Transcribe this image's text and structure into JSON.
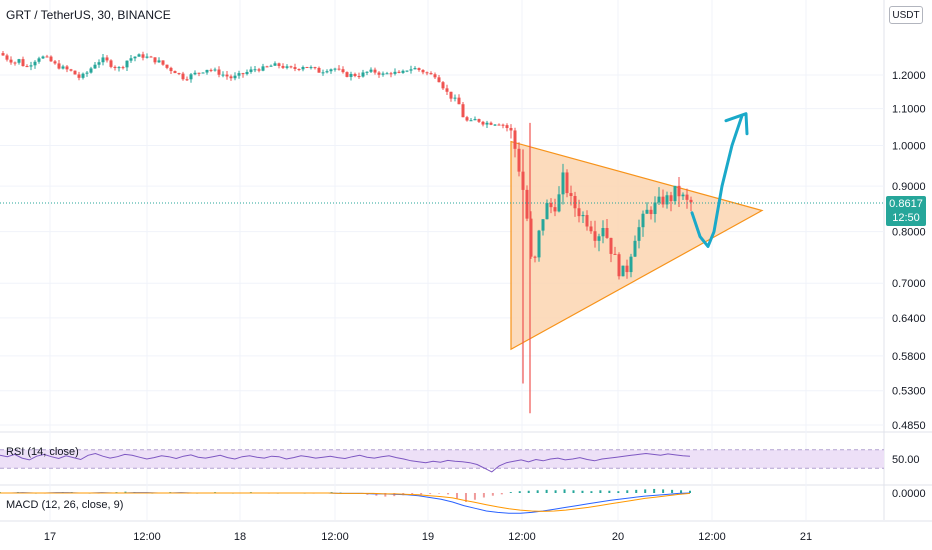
{
  "header": {
    "symbol_title": "GRT / TetherUS, 30, BINANCE",
    "currency_badge": "USDT"
  },
  "last_price": {
    "value": "0.8617",
    "countdown": "12:50"
  },
  "indicators": {
    "rsi_label": "RSI (14, close)",
    "rsi_level_label": "50.00",
    "macd_label": "MACD (12, 26, close, 9)",
    "macd_level_label": "0.0000"
  },
  "colors": {
    "up": "#26a69a",
    "down": "#ef5350",
    "triangle_stroke": "#f7931a",
    "triangle_fill": "#fbd5b0",
    "arrow": "#1aa9c9",
    "rsi_line": "#7e57c2",
    "rsi_band": "#ede0f7",
    "macd_line": "#2962ff",
    "signal_line": "#ff9800",
    "last_price_line": "#26a69a"
  },
  "chart_data": {
    "type": "candlestick",
    "title": "GRT / TetherUS, 30, BINANCE",
    "y_scale": "log",
    "ylim": [
      0.485,
      1.32
    ],
    "y_ticks": [
      1.2,
      1.1,
      1.0,
      0.9,
      0.8,
      0.7,
      0.64,
      0.58,
      0.53,
      0.485
    ],
    "y_tick_labels": [
      "1.2000",
      "1.1000",
      "1.0000",
      "0.9000",
      "0.8000",
      "0.7000",
      "0.6400",
      "0.5800",
      "0.5300",
      "0.4850"
    ],
    "x_tick_labels": [
      "17",
      "12:00",
      "18",
      "12:00",
      "19",
      "12:00",
      "20",
      "12:00",
      "21"
    ],
    "last_price": 0.8617,
    "close_path": [
      [
        0,
        1.27
      ],
      [
        8,
        1.25
      ],
      [
        15,
        1.24
      ],
      [
        20,
        1.25
      ],
      [
        25,
        1.22
      ],
      [
        32,
        1.24
      ],
      [
        40,
        1.26
      ],
      [
        48,
        1.25
      ],
      [
        56,
        1.23
      ],
      [
        64,
        1.22
      ],
      [
        72,
        1.21
      ],
      [
        80,
        1.19
      ],
      [
        88,
        1.21
      ],
      [
        96,
        1.24
      ],
      [
        104,
        1.25
      ],
      [
        112,
        1.23
      ],
      [
        120,
        1.22
      ],
      [
        128,
        1.25
      ],
      [
        136,
        1.26
      ],
      [
        144,
        1.26
      ],
      [
        152,
        1.25
      ],
      [
        160,
        1.24
      ],
      [
        168,
        1.22
      ],
      [
        176,
        1.21
      ],
      [
        184,
        1.19
      ],
      [
        192,
        1.2
      ],
      [
        200,
        1.21
      ],
      [
        208,
        1.22
      ],
      [
        216,
        1.21
      ],
      [
        224,
        1.2
      ],
      [
        232,
        1.19
      ],
      [
        240,
        1.2
      ],
      [
        248,
        1.21
      ],
      [
        256,
        1.22
      ],
      [
        264,
        1.22
      ],
      [
        272,
        1.23
      ],
      [
        280,
        1.23
      ],
      [
        288,
        1.22
      ],
      [
        296,
        1.22
      ],
      [
        304,
        1.23
      ],
      [
        312,
        1.22
      ],
      [
        320,
        1.21
      ],
      [
        328,
        1.22
      ],
      [
        336,
        1.22
      ],
      [
        344,
        1.2
      ],
      [
        352,
        1.2
      ],
      [
        360,
        1.2
      ],
      [
        368,
        1.21
      ],
      [
        376,
        1.21
      ],
      [
        384,
        1.2
      ],
      [
        392,
        1.21
      ],
      [
        400,
        1.2
      ],
      [
        408,
        1.22
      ],
      [
        416,
        1.22
      ],
      [
        424,
        1.21
      ],
      [
        430,
        1.2
      ],
      [
        436,
        1.2
      ],
      [
        440,
        1.18
      ],
      [
        446,
        1.15
      ],
      [
        452,
        1.13
      ],
      [
        458,
        1.12
      ],
      [
        464,
        1.07
      ],
      [
        470,
        1.06
      ],
      [
        476,
        1.07
      ],
      [
        484,
        1.06
      ],
      [
        492,
        1.06
      ],
      [
        500,
        1.06
      ],
      [
        506,
        1.05
      ],
      [
        512,
        1.03
      ],
      [
        516,
        0.98
      ],
      [
        520,
        0.93
      ],
      [
        524,
        0.88
      ],
      [
        528,
        0.81
      ],
      [
        532,
        0.72
      ],
      [
        536,
        0.75
      ],
      [
        540,
        0.81
      ],
      [
        544,
        0.84
      ],
      [
        548,
        0.86
      ],
      [
        552,
        0.85
      ],
      [
        556,
        0.86
      ],
      [
        560,
        0.88
      ],
      [
        564,
        0.93
      ],
      [
        568,
        0.88
      ],
      [
        572,
        0.86
      ],
      [
        576,
        0.85
      ],
      [
        580,
        0.84
      ],
      [
        584,
        0.83
      ],
      [
        588,
        0.82
      ],
      [
        592,
        0.81
      ],
      [
        596,
        0.79
      ],
      [
        600,
        0.8
      ],
      [
        604,
        0.82
      ],
      [
        608,
        0.78
      ],
      [
        612,
        0.76
      ],
      [
        616,
        0.74
      ],
      [
        620,
        0.72
      ],
      [
        624,
        0.72
      ],
      [
        628,
        0.73
      ],
      [
        632,
        0.77
      ],
      [
        636,
        0.8
      ],
      [
        640,
        0.81
      ],
      [
        646,
        0.84
      ],
      [
        652,
        0.85
      ],
      [
        658,
        0.86
      ],
      [
        664,
        0.87
      ],
      [
        670,
        0.87
      ],
      [
        676,
        0.89
      ],
      [
        680,
        0.88
      ],
      [
        684,
        0.87
      ],
      [
        688,
        0.86
      ],
      [
        692,
        0.8617
      ]
    ],
    "spike_wicks": [
      {
        "x": 530,
        "high": 1.06,
        "low": 0.5
      },
      {
        "x": 523,
        "high": 0.99,
        "low": 0.54
      }
    ],
    "annotations": {
      "triangle": [
        [
          511,
          1.01
        ],
        [
          762,
          0.845
        ],
        [
          511,
          0.59
        ]
      ],
      "arrow_path": [
        [
          692,
          0.84
        ],
        [
          700,
          0.79
        ],
        [
          708,
          0.77
        ],
        [
          714,
          0.8
        ],
        [
          722,
          0.9
        ],
        [
          732,
          1.0
        ],
        [
          742,
          1.08
        ]
      ]
    },
    "rsi": {
      "label": "RSI (14, close)",
      "level": 50,
      "band": [
        30,
        70
      ],
      "values": [
        58,
        55,
        60,
        52,
        48,
        56,
        60,
        55,
        51,
        57,
        53,
        49,
        58,
        62,
        56,
        52,
        55,
        60,
        58,
        54,
        50,
        53,
        57,
        55,
        51,
        56,
        59,
        54,
        52,
        55,
        58,
        53,
        50,
        55,
        57,
        54,
        52,
        56,
        55,
        50,
        53,
        57,
        55,
        52,
        54,
        56,
        53,
        51,
        55,
        58,
        54,
        52,
        55,
        57,
        53,
        50,
        46,
        44,
        42,
        45,
        43,
        47,
        45,
        44,
        42,
        38,
        30,
        22,
        35,
        42,
        45,
        48,
        44,
        49,
        46,
        50,
        52,
        48,
        50,
        53,
        49,
        46,
        50,
        52,
        54,
        56,
        58,
        60,
        62,
        60,
        58,
        61,
        59,
        57,
        56
      ]
    },
    "macd": {
      "label": "MACD (12, 26, close, 9)",
      "level": 0,
      "histogram": [
        0.002,
        0.001,
        0.002,
        0.001,
        0.0,
        -0.001,
        0.001,
        0.002,
        0.002,
        0.001,
        0.0,
        -0.001,
        0.001,
        0.002,
        0.003,
        0.002,
        0.001,
        0.0,
        0.001,
        0.002,
        0.001,
        -0.001,
        0.0,
        0.001,
        0.002,
        0.001,
        0.0,
        0.001,
        0.002,
        0.001,
        -0.001,
        0.0,
        0.001,
        0.001,
        0.0,
        -0.001,
        0.001,
        0.002,
        0.001,
        0.0,
        -0.002,
        -0.004,
        -0.006,
        -0.008,
        -0.007,
        -0.005,
        -0.004,
        -0.003,
        -0.002,
        -0.001,
        -0.003,
        -0.012,
        -0.02,
        -0.015,
        -0.01,
        -0.006,
        -0.003,
        0.002,
        0.004,
        0.005,
        0.006,
        0.007,
        0.006,
        0.008,
        0.006,
        0.005,
        0.004,
        0.006,
        0.005,
        0.004,
        0.006,
        0.007,
        0.008,
        0.009,
        0.008,
        0.007,
        0.006,
        0.005
      ],
      "macd_line": [
        0.0,
        0.0,
        0.001,
        0.0,
        0.0,
        0.001,
        0.001,
        0.0,
        0.0,
        0.001,
        0.0,
        0.0,
        0.001,
        0.001,
        0.0,
        0.0,
        0.001,
        0.0,
        0.0,
        0.0,
        0.0,
        0.0,
        0.0,
        0.0,
        0.0,
        0.0,
        0.0,
        0.0,
        0.0,
        0.0,
        -0.001,
        -0.001,
        -0.001,
        -0.002,
        -0.002,
        -0.003,
        -0.004,
        -0.006,
        -0.01,
        -0.014,
        -0.02,
        -0.028,
        -0.034,
        -0.04,
        -0.043,
        -0.045,
        -0.045,
        -0.043,
        -0.04,
        -0.036,
        -0.032,
        -0.028,
        -0.024,
        -0.02,
        -0.016,
        -0.013,
        -0.01,
        -0.007,
        -0.005,
        -0.003,
        -0.001,
        0.0
      ],
      "signal_line": [
        0.0,
        0.0,
        0.0,
        0.0,
        0.0,
        0.0,
        0.0,
        0.0,
        0.0,
        0.0,
        0.0,
        0.0,
        0.0,
        0.0,
        0.0,
        0.0,
        0.0,
        0.0,
        0.0,
        0.0,
        0.0,
        0.0,
        0.0,
        0.0,
        0.0,
        0.0,
        0.0,
        0.0,
        0.0,
        0.0,
        -0.001,
        -0.001,
        -0.001,
        -0.001,
        -0.002,
        -0.002,
        -0.003,
        -0.004,
        -0.006,
        -0.008,
        -0.011,
        -0.016,
        -0.021,
        -0.026,
        -0.031,
        -0.035,
        -0.038,
        -0.04,
        -0.041,
        -0.04,
        -0.038,
        -0.035,
        -0.032,
        -0.028,
        -0.024,
        -0.02,
        -0.016,
        -0.012,
        -0.009,
        -0.006,
        -0.003,
        -0.001
      ]
    }
  }
}
